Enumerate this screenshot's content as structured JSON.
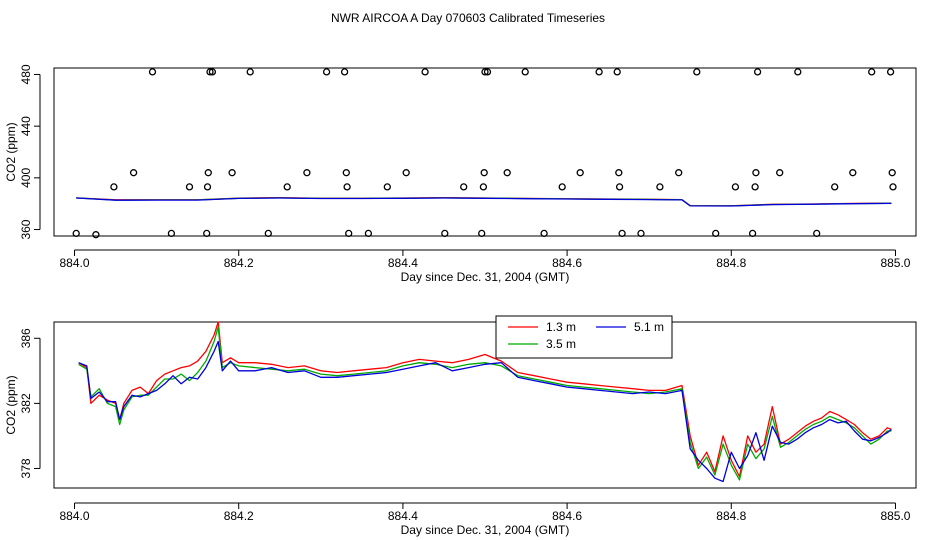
{
  "title": "NWR AIRCOA A  Day 070603  Calibrated Timeseries",
  "chart_data": [
    {
      "type": "scatter",
      "xlabel": "Day since Dec. 31, 2004 (GMT)",
      "ylabel": "CO2 (ppm)",
      "xlim": [
        883.975,
        885.025
      ],
      "ylim": [
        355,
        485
      ],
      "xticks": [
        884.0,
        884.2,
        884.4,
        884.6,
        884.8,
        885.0
      ],
      "xtick_labels": [
        "884.0",
        "884.2",
        "884.4",
        "884.6",
        "884.8",
        "885.0"
      ],
      "yticks": [
        360,
        400,
        440,
        480
      ],
      "ytick_labels": [
        "360",
        "400",
        "440",
        "480"
      ],
      "marker_points": {
        "x": [
          884.002,
          884.026,
          884.048,
          884.072,
          884.095,
          884.118,
          884.14,
          884.161,
          884.162,
          884.163,
          884.165,
          884.168,
          884.192,
          884.214,
          884.236,
          884.259,
          884.283,
          884.307,
          884.329,
          884.331,
          884.332,
          884.334,
          884.358,
          884.381,
          884.404,
          884.427,
          884.451,
          884.474,
          884.496,
          884.498,
          884.499,
          884.5,
          884.503,
          884.527,
          884.549,
          884.572,
          884.594,
          884.616,
          884.639,
          884.661,
          884.663,
          884.664,
          884.667,
          884.69,
          884.713,
          884.736,
          884.758,
          884.781,
          884.805,
          884.826,
          884.829,
          884.83,
          884.832,
          884.859,
          884.881,
          884.904,
          884.926,
          884.948,
          884.971,
          884.994,
          884.996,
          884.997
        ],
        "y": [
          357,
          356,
          393,
          404,
          482,
          357,
          393,
          357,
          393,
          404,
          482,
          482,
          404,
          482,
          357,
          393,
          404,
          482,
          482,
          404,
          393,
          357,
          357,
          393,
          404,
          482,
          357,
          393,
          357,
          393,
          404,
          482,
          482,
          404,
          482,
          357,
          393,
          404,
          482,
          482,
          404,
          393,
          357,
          357,
          393,
          404,
          482,
          357,
          393,
          357,
          393,
          404,
          482,
          404,
          482,
          357,
          393,
          404,
          482,
          482,
          404,
          393
        ]
      },
      "series": [
        {
          "name": "1.3 m",
          "color": "#ff0000",
          "x": [
            884.002,
            884.05,
            884.1,
            884.15,
            884.2,
            884.25,
            884.3,
            884.35,
            884.4,
            884.45,
            884.5,
            884.55,
            884.6,
            884.65,
            884.7,
            884.74,
            884.75,
            884.8,
            884.85,
            884.9,
            884.95,
            884.995
          ],
          "y": [
            384.5,
            383.0,
            383.0,
            383.0,
            384.3,
            384.6,
            384.2,
            384.2,
            384.4,
            384.6,
            384.4,
            384.1,
            383.8,
            383.6,
            383.4,
            383.1,
            378.5,
            378.4,
            379.5,
            379.8,
            380.2,
            380.4
          ]
        },
        {
          "name": "3.5 m",
          "color": "#00aa00",
          "x": [
            884.002,
            884.05,
            884.1,
            884.15,
            884.2,
            884.25,
            884.3,
            884.35,
            884.4,
            884.45,
            884.5,
            884.55,
            884.6,
            884.65,
            884.7,
            884.74,
            884.75,
            884.8,
            884.85,
            884.9,
            884.95,
            884.995
          ],
          "y": [
            384.5,
            382.8,
            382.9,
            382.9,
            384.2,
            384.5,
            384.1,
            384.1,
            384.3,
            384.5,
            384.3,
            384.0,
            383.7,
            383.5,
            383.3,
            383.0,
            378.4,
            378.3,
            379.4,
            379.7,
            380.1,
            380.3
          ]
        },
        {
          "name": "5.1 m",
          "color": "#0000dd",
          "x": [
            884.002,
            884.05,
            884.1,
            884.15,
            884.2,
            884.25,
            884.3,
            884.35,
            884.4,
            884.45,
            884.5,
            884.55,
            884.6,
            884.65,
            884.7,
            884.74,
            884.75,
            884.8,
            884.85,
            884.9,
            884.95,
            884.995
          ],
          "y": [
            384.4,
            382.7,
            382.8,
            382.8,
            384.1,
            384.4,
            384.0,
            384.0,
            384.2,
            384.4,
            384.2,
            383.9,
            383.6,
            383.4,
            383.2,
            382.9,
            378.3,
            378.2,
            379.3,
            379.6,
            380.0,
            380.2
          ]
        }
      ]
    },
    {
      "type": "line",
      "xlabel": "Day since Dec. 31, 2004 (GMT)",
      "ylabel": "CO2 (ppm)",
      "xlim": [
        883.975,
        885.025
      ],
      "ylim": [
        376.8,
        387.0
      ],
      "xticks": [
        884.0,
        884.2,
        884.4,
        884.6,
        884.8,
        885.0
      ],
      "xtick_labels": [
        "884.0",
        "884.2",
        "884.4",
        "884.6",
        "884.8",
        "885.0"
      ],
      "yticks": [
        378,
        382,
        386
      ],
      "ytick_labels": [
        "378",
        "382",
        "386"
      ],
      "legend": {
        "position": "top-center",
        "entries": [
          "1.3 m",
          "3.5 m",
          "5.1 m"
        ]
      },
      "series": [
        {
          "name": "1.3 m",
          "color": "#ff0000",
          "x": [
            884.005,
            884.015,
            884.02,
            884.03,
            884.04,
            884.05,
            884.055,
            884.06,
            884.07,
            884.08,
            884.09,
            884.1,
            884.11,
            884.12,
            884.13,
            884.14,
            884.15,
            884.16,
            884.17,
            884.175,
            884.18,
            884.19,
            884.2,
            884.22,
            884.24,
            884.26,
            884.28,
            884.3,
            884.32,
            884.34,
            884.36,
            884.38,
            884.4,
            884.42,
            884.44,
            884.46,
            884.48,
            884.5,
            884.52,
            884.54,
            884.56,
            884.58,
            884.6,
            884.62,
            884.64,
            884.66,
            884.68,
            884.7,
            884.72,
            884.74,
            884.75,
            884.76,
            884.77,
            884.78,
            884.79,
            884.8,
            884.81,
            884.82,
            884.83,
            884.84,
            884.85,
            884.86,
            884.87,
            884.88,
            884.89,
            884.9,
            884.91,
            884.92,
            884.93,
            884.94,
            884.95,
            884.96,
            884.97,
            884.98,
            884.99,
            884.995
          ],
          "y": [
            384.5,
            384.2,
            382.0,
            382.5,
            382.2,
            382.0,
            381.0,
            382.0,
            382.8,
            383.0,
            382.6,
            383.4,
            383.8,
            384.0,
            384.2,
            384.3,
            384.6,
            385.2,
            386.2,
            387.0,
            384.5,
            384.8,
            384.5,
            384.5,
            384.4,
            384.2,
            384.3,
            384.0,
            383.9,
            384.0,
            384.1,
            384.2,
            384.5,
            384.7,
            384.6,
            384.5,
            384.7,
            385.0,
            384.6,
            383.9,
            383.7,
            383.5,
            383.3,
            383.2,
            383.1,
            383.0,
            382.9,
            382.8,
            382.8,
            383.1,
            380.0,
            378.2,
            379.0,
            377.8,
            380.0,
            378.5,
            377.5,
            380.0,
            379.0,
            379.5,
            381.8,
            379.5,
            379.8,
            380.2,
            380.6,
            380.9,
            381.1,
            381.5,
            381.3,
            381.0,
            380.7,
            380.2,
            379.8,
            380.0,
            380.5,
            380.4
          ]
        },
        {
          "name": "3.5 m",
          "color": "#00aa00",
          "x": [
            884.005,
            884.015,
            884.02,
            884.03,
            884.04,
            884.05,
            884.055,
            884.06,
            884.07,
            884.08,
            884.09,
            884.1,
            884.11,
            884.12,
            884.13,
            884.14,
            884.15,
            884.16,
            884.17,
            884.175,
            884.18,
            884.19,
            884.2,
            884.22,
            884.24,
            884.26,
            884.28,
            884.3,
            884.32,
            884.34,
            884.36,
            884.38,
            884.4,
            884.42,
            884.44,
            884.46,
            884.48,
            884.5,
            884.52,
            884.54,
            884.56,
            884.58,
            884.6,
            884.62,
            884.64,
            884.66,
            884.68,
            884.7,
            884.72,
            884.74,
            884.75,
            884.76,
            884.77,
            884.78,
            884.79,
            884.8,
            884.81,
            884.82,
            884.83,
            884.84,
            884.85,
            884.86,
            884.87,
            884.88,
            884.89,
            884.9,
            884.91,
            884.92,
            884.93,
            884.94,
            884.95,
            884.96,
            884.97,
            884.98,
            884.99,
            884.995
          ],
          "y": [
            384.4,
            384.1,
            382.4,
            382.9,
            382.0,
            381.8,
            380.7,
            381.6,
            382.4,
            382.5,
            382.5,
            383.0,
            383.5,
            383.5,
            383.8,
            383.4,
            383.9,
            384.6,
            385.8,
            386.7,
            384.2,
            384.5,
            384.3,
            384.2,
            384.1,
            384.0,
            384.1,
            383.8,
            383.7,
            383.8,
            383.9,
            384.0,
            384.3,
            384.5,
            384.4,
            384.2,
            384.4,
            384.5,
            384.3,
            383.7,
            383.5,
            383.3,
            383.1,
            383.0,
            382.9,
            382.8,
            382.7,
            382.6,
            382.7,
            382.9,
            379.6,
            378.0,
            378.7,
            377.6,
            379.5,
            378.2,
            377.3,
            379.5,
            378.6,
            379.2,
            381.2,
            379.3,
            379.6,
            380.0,
            380.4,
            380.7,
            380.9,
            381.2,
            381.0,
            380.8,
            380.5,
            380.0,
            379.5,
            379.8,
            380.3,
            380.3
          ]
        },
        {
          "name": "5.1 m",
          "color": "#0000dd",
          "x": [
            884.005,
            884.015,
            884.02,
            884.03,
            884.04,
            884.05,
            884.055,
            884.06,
            884.07,
            884.08,
            884.09,
            884.1,
            884.11,
            884.12,
            884.13,
            884.14,
            884.15,
            884.16,
            884.17,
            884.175,
            884.18,
            884.19,
            884.2,
            884.22,
            884.24,
            884.26,
            884.28,
            884.3,
            884.32,
            884.34,
            884.36,
            884.38,
            884.4,
            884.42,
            884.44,
            884.46,
            884.48,
            884.5,
            884.52,
            884.54,
            884.56,
            884.58,
            884.6,
            884.62,
            884.64,
            884.66,
            884.68,
            884.7,
            884.72,
            884.74,
            884.75,
            884.76,
            884.77,
            884.78,
            884.79,
            884.8,
            884.81,
            884.82,
            884.83,
            884.84,
            884.85,
            884.86,
            884.87,
            884.88,
            884.89,
            884.9,
            884.91,
            884.92,
            884.93,
            884.94,
            884.95,
            884.96,
            884.97,
            884.98,
            884.99,
            884.995
          ],
          "y": [
            384.5,
            384.3,
            382.3,
            382.7,
            382.1,
            382.1,
            381.0,
            381.8,
            382.5,
            382.4,
            382.6,
            382.8,
            383.2,
            383.7,
            383.2,
            383.6,
            383.5,
            384.2,
            385.2,
            385.8,
            384.0,
            384.6,
            384.0,
            384.0,
            384.2,
            383.9,
            384.0,
            383.6,
            383.6,
            383.7,
            383.8,
            383.9,
            384.1,
            384.3,
            384.5,
            384.0,
            384.2,
            384.4,
            384.5,
            383.6,
            383.4,
            383.2,
            383.0,
            382.9,
            382.8,
            382.7,
            382.6,
            382.7,
            382.6,
            382.8,
            379.2,
            378.5,
            378.0,
            377.4,
            377.2,
            379.0,
            378.0,
            378.8,
            380.2,
            378.5,
            380.6,
            379.6,
            379.5,
            379.8,
            380.2,
            380.5,
            380.7,
            381.0,
            380.8,
            380.9,
            380.3,
            379.8,
            379.7,
            379.9,
            380.2,
            380.4
          ]
        }
      ]
    }
  ]
}
